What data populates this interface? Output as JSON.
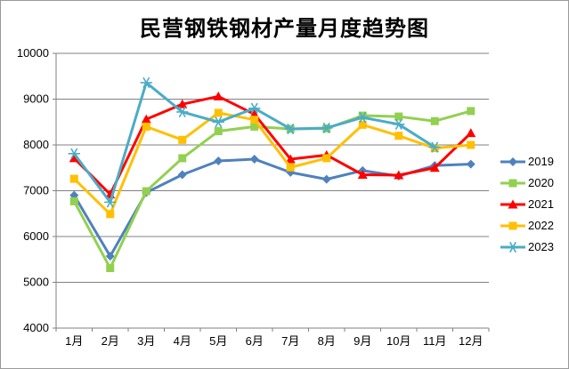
{
  "title": "民营钢铁钢材产量月度趋势图",
  "chart_data": {
    "type": "line",
    "title": "民营钢铁钢材产量月度趋势图",
    "categories": [
      "1月",
      "2月",
      "3月",
      "4月",
      "5月",
      "6月",
      "7月",
      "8月",
      "9月",
      "10月",
      "11月",
      "12月"
    ],
    "series": [
      {
        "name": "2019",
        "color": "#4F81BD",
        "marker": "diamond",
        "values": [
          6900,
          5570,
          6960,
          7350,
          7650,
          7690,
          7400,
          7250,
          7440,
          7320,
          7550,
          7580
        ]
      },
      {
        "name": "2020",
        "color": "#92D050",
        "marker": "square",
        "values": [
          6770,
          5310,
          6990,
          7710,
          8300,
          8400,
          8350,
          8360,
          8640,
          8620,
          8520,
          8740
        ]
      },
      {
        "name": "2021",
        "color": "#FF0000",
        "marker": "triangle",
        "values": [
          7710,
          6920,
          8560,
          8890,
          9060,
          8670,
          7690,
          7780,
          7350,
          7340,
          7500,
          8260
        ]
      },
      {
        "name": "2022",
        "color": "#FFC000",
        "marker": "square",
        "values": [
          7260,
          6490,
          8400,
          8110,
          8700,
          8550,
          7510,
          7710,
          8440,
          8200,
          7930,
          8000
        ]
      },
      {
        "name": "2023",
        "color": "#4BACC6",
        "marker": "star",
        "values": [
          7810,
          6750,
          9360,
          8720,
          8500,
          8800,
          8350,
          8370,
          8600,
          8450,
          7950,
          null
        ]
      }
    ],
    "ylim": [
      4000,
      10000
    ],
    "ytick_step": 1000,
    "ytick_labels": [
      "4000",
      "5000",
      "6000",
      "7000",
      "8000",
      "9000",
      "10000"
    ],
    "xlabel": "",
    "ylabel": "",
    "grid": true,
    "legend_position": "right",
    "legend_entries": [
      "2019",
      "2020",
      "2021",
      "2022",
      "2023"
    ]
  },
  "style": {
    "grid_color": "#808080",
    "axis_color": "#808080",
    "text_color": "#000000",
    "background": "#FFFFFF"
  }
}
